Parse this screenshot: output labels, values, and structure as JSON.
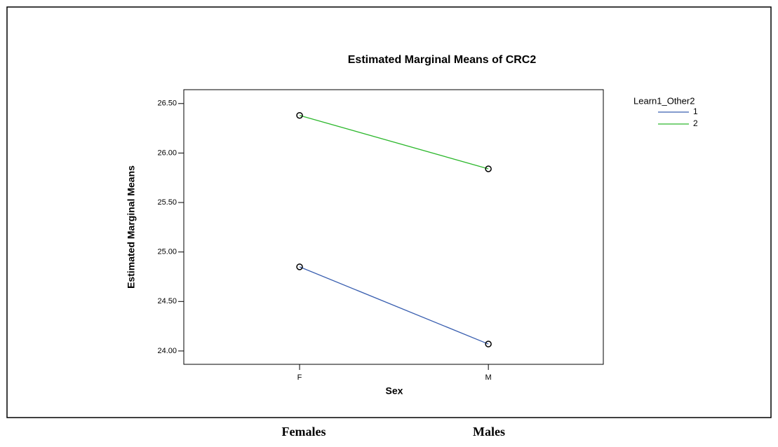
{
  "chart_data": {
    "type": "line",
    "title": "Estimated Marginal Means of CRC2",
    "x_label": "Sex",
    "y_label": "Estimated Marginal Means",
    "legend_title": "Learn1_Other2",
    "legend_position": "upper right outside",
    "categories": [
      "F",
      "M"
    ],
    "series": [
      {
        "name": "1",
        "color": "#3a5fb0",
        "values": [
          24.85,
          24.07
        ]
      },
      {
        "name": "2",
        "color": "#2db82d",
        "values": [
          26.38,
          25.84
        ]
      }
    ],
    "ylim": [
      23.865,
      26.64
    ],
    "yticks": [
      {
        "value": 24,
        "label": "24.00"
      },
      {
        "value": 24.5,
        "label": "24.50"
      },
      {
        "value": 25,
        "label": "25.00"
      },
      {
        "value": 25.5,
        "label": "25.50"
      },
      {
        "value": 26,
        "label": "26.00"
      },
      {
        "value": 26.5,
        "label": "26.50"
      }
    ],
    "markers": true,
    "grid": false,
    "captions": [
      "Females",
      "Males"
    ]
  }
}
